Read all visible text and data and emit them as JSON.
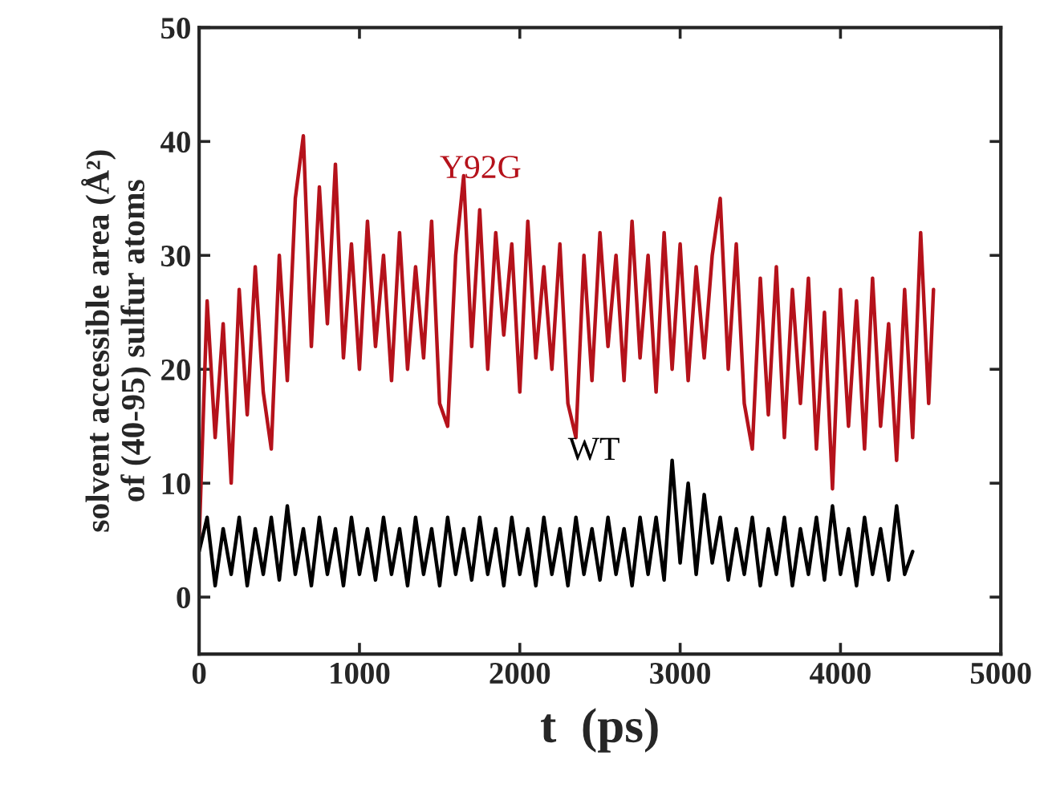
{
  "chart_data": {
    "type": "line",
    "xlabel": "t  (ps)",
    "ylabel": "solvent accessible area (Å²)\nof (40-95) sulfur atoms",
    "xlim": [
      0,
      5000
    ],
    "xticks": [
      0,
      1000,
      2000,
      3000,
      4000,
      5000
    ],
    "ylim": [
      -5,
      50
    ],
    "yticks": [
      0,
      10,
      20,
      30,
      40,
      50
    ],
    "grid": false,
    "legend": false,
    "marker": "none",
    "line_style": "solid",
    "annotations": [
      "Y92G",
      "WT"
    ],
    "series": [
      {
        "color": "#b5121b",
        "x": [
          0,
          50,
          100,
          150,
          200,
          250,
          300,
          350,
          400,
          450,
          500,
          550,
          600,
          650,
          700,
          750,
          800,
          850,
          900,
          950,
          1000,
          1050,
          1100,
          1150,
          1200,
          1250,
          1300,
          1350,
          1400,
          1450,
          1500,
          1550,
          1600,
          1650,
          1700,
          1750,
          1800,
          1850,
          1900,
          1950,
          2000,
          2050,
          2100,
          2150,
          2200,
          2250,
          2300,
          2350,
          2400,
          2450,
          2500,
          2550,
          2600,
          2650,
          2700,
          2750,
          2800,
          2850,
          2900,
          2950,
          3000,
          3050,
          3100,
          3150,
          3200,
          3250,
          3300,
          3350,
          3400,
          3450,
          3500,
          3550,
          3600,
          3650,
          3700,
          3750,
          3800,
          3850,
          3900,
          3950,
          4000,
          4050,
          4100,
          4150,
          4200,
          4250,
          4300,
          4350,
          4400,
          4450,
          4500,
          4550,
          4580
        ],
        "values": [
          5,
          26,
          14,
          24,
          10,
          27,
          16,
          29,
          18,
          13,
          30,
          19,
          35,
          40.5,
          22,
          36,
          24,
          38,
          21,
          31,
          20,
          33,
          22,
          30,
          19,
          32,
          20,
          29,
          21,
          33,
          17,
          15,
          30,
          37,
          22,
          34,
          20,
          32,
          23,
          31,
          18,
          33,
          21,
          29,
          20,
          31,
          17,
          14,
          30,
          19,
          32,
          22,
          30,
          19,
          33,
          21,
          30,
          18,
          32,
          20,
          31,
          19,
          29,
          21,
          30,
          35,
          20,
          31,
          17,
          13,
          28,
          16,
          29,
          14,
          27,
          17,
          28,
          13,
          25,
          9.5,
          27,
          15,
          26,
          13,
          28,
          15,
          24,
          12,
          27,
          14,
          32,
          17,
          27
        ]
      },
      {
        "color": "#000000",
        "x": [
          0,
          50,
          100,
          150,
          200,
          250,
          300,
          350,
          400,
          450,
          500,
          550,
          600,
          650,
          700,
          750,
          800,
          850,
          900,
          950,
          1000,
          1050,
          1100,
          1150,
          1200,
          1250,
          1300,
          1350,
          1400,
          1450,
          1500,
          1550,
          1600,
          1650,
          1700,
          1750,
          1800,
          1850,
          1900,
          1950,
          2000,
          2050,
          2100,
          2150,
          2200,
          2250,
          2300,
          2350,
          2400,
          2450,
          2500,
          2550,
          2600,
          2650,
          2700,
          2750,
          2800,
          2850,
          2900,
          2950,
          3000,
          3050,
          3100,
          3150,
          3200,
          3250,
          3300,
          3350,
          3400,
          3450,
          3500,
          3550,
          3600,
          3650,
          3700,
          3750,
          3800,
          3850,
          3900,
          3950,
          4000,
          4050,
          4100,
          4150,
          4200,
          4250,
          4300,
          4350,
          4400,
          4450
        ],
        "values": [
          4,
          7,
          1,
          6,
          2,
          7,
          1,
          6,
          2,
          7,
          1.5,
          8,
          2,
          6,
          1,
          7,
          2,
          6,
          1,
          7,
          2,
          6,
          1.5,
          7,
          2,
          6,
          1,
          7,
          2,
          6,
          1,
          7,
          2,
          6,
          1.5,
          7,
          2,
          6,
          1,
          7,
          2,
          6,
          1,
          7,
          2,
          6,
          1,
          7,
          2,
          6,
          1.5,
          7,
          2,
          6,
          1,
          7,
          2,
          7,
          1.5,
          12,
          3,
          10,
          2,
          9,
          3,
          7,
          1.5,
          6,
          2,
          7,
          1,
          6,
          2,
          7,
          1,
          6,
          2,
          7,
          1.5,
          8,
          2,
          6,
          1,
          7,
          2,
          6,
          1.5,
          8,
          2,
          4
        ]
      }
    ]
  }
}
